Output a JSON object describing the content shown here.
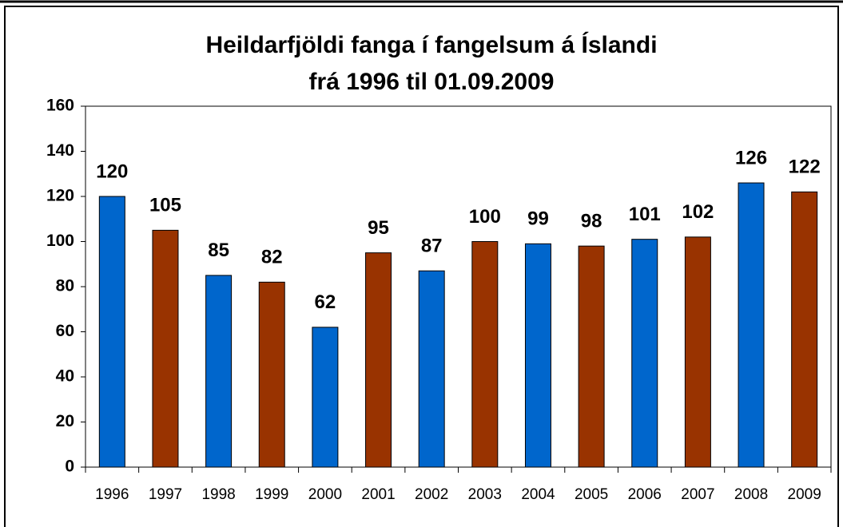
{
  "chart_data": {
    "type": "bar",
    "title": [
      "Heildarfjöldi fanga í fangelsum á Íslandi",
      "frá 1996 til 01.09.2009"
    ],
    "categories": [
      "1996",
      "1997",
      "1998",
      "1999",
      "2000",
      "2001",
      "2002",
      "2003",
      "2004",
      "2005",
      "2006",
      "2007",
      "2008",
      "2009"
    ],
    "values": [
      120,
      105,
      85,
      82,
      62,
      95,
      87,
      100,
      99,
      98,
      101,
      102,
      126,
      122
    ],
    "colors": [
      "#0066cc",
      "#993300",
      "#0066cc",
      "#993300",
      "#0066cc",
      "#993300",
      "#0066cc",
      "#993300",
      "#0066cc",
      "#993300",
      "#0066cc",
      "#993300",
      "#0066cc",
      "#993300"
    ],
    "ylim": [
      0,
      160
    ],
    "yticks": [
      0,
      20,
      40,
      60,
      80,
      100,
      120,
      140,
      160
    ],
    "grid": false
  }
}
